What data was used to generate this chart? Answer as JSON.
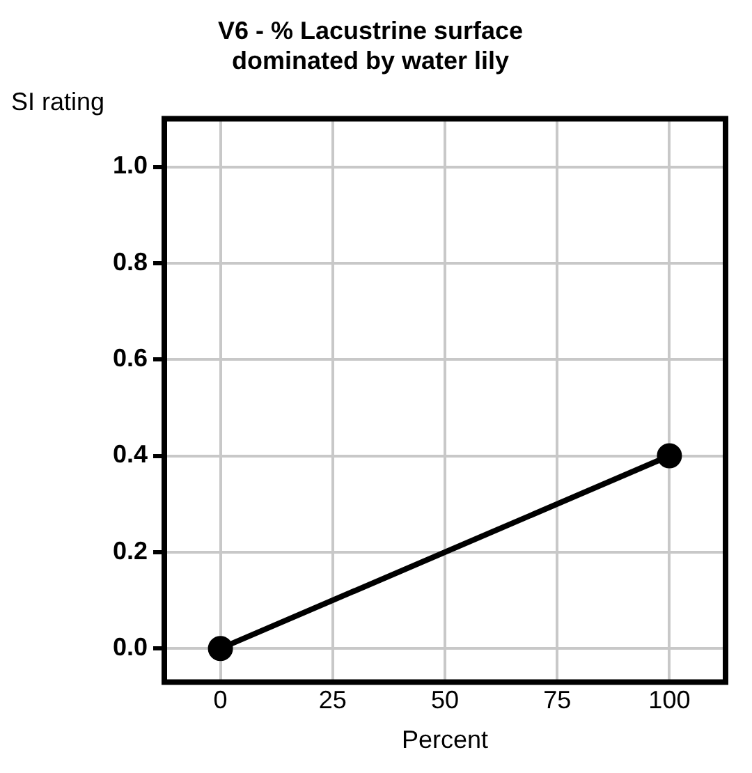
{
  "chart_data": {
    "type": "line",
    "title": "V6 - % Lacustrine surface\ndominated by water lily",
    "xlabel": "Percent",
    "ylabel": "SI rating",
    "x": [
      0,
      100
    ],
    "series": [
      {
        "color": "#000000",
        "values": [
          0,
          0.4
        ]
      }
    ],
    "xlim": [
      -12.5,
      112.5
    ],
    "xticks": [
      0,
      25,
      50,
      75,
      100
    ],
    "ylim": [
      -0.07,
      1.1
    ],
    "yticks": [
      {
        "value": 0,
        "label": "0.0"
      },
      {
        "value": 0.2,
        "label": "0.2"
      },
      {
        "value": 0.4,
        "label": "0.4"
      },
      {
        "value": 0.6,
        "label": "0.6"
      },
      {
        "value": 0.8,
        "label": "0.8"
      },
      {
        "value": 1,
        "label": "1.0"
      }
    ],
    "grid": true,
    "legend": false,
    "marker": "circle",
    "line_style": "solid"
  }
}
